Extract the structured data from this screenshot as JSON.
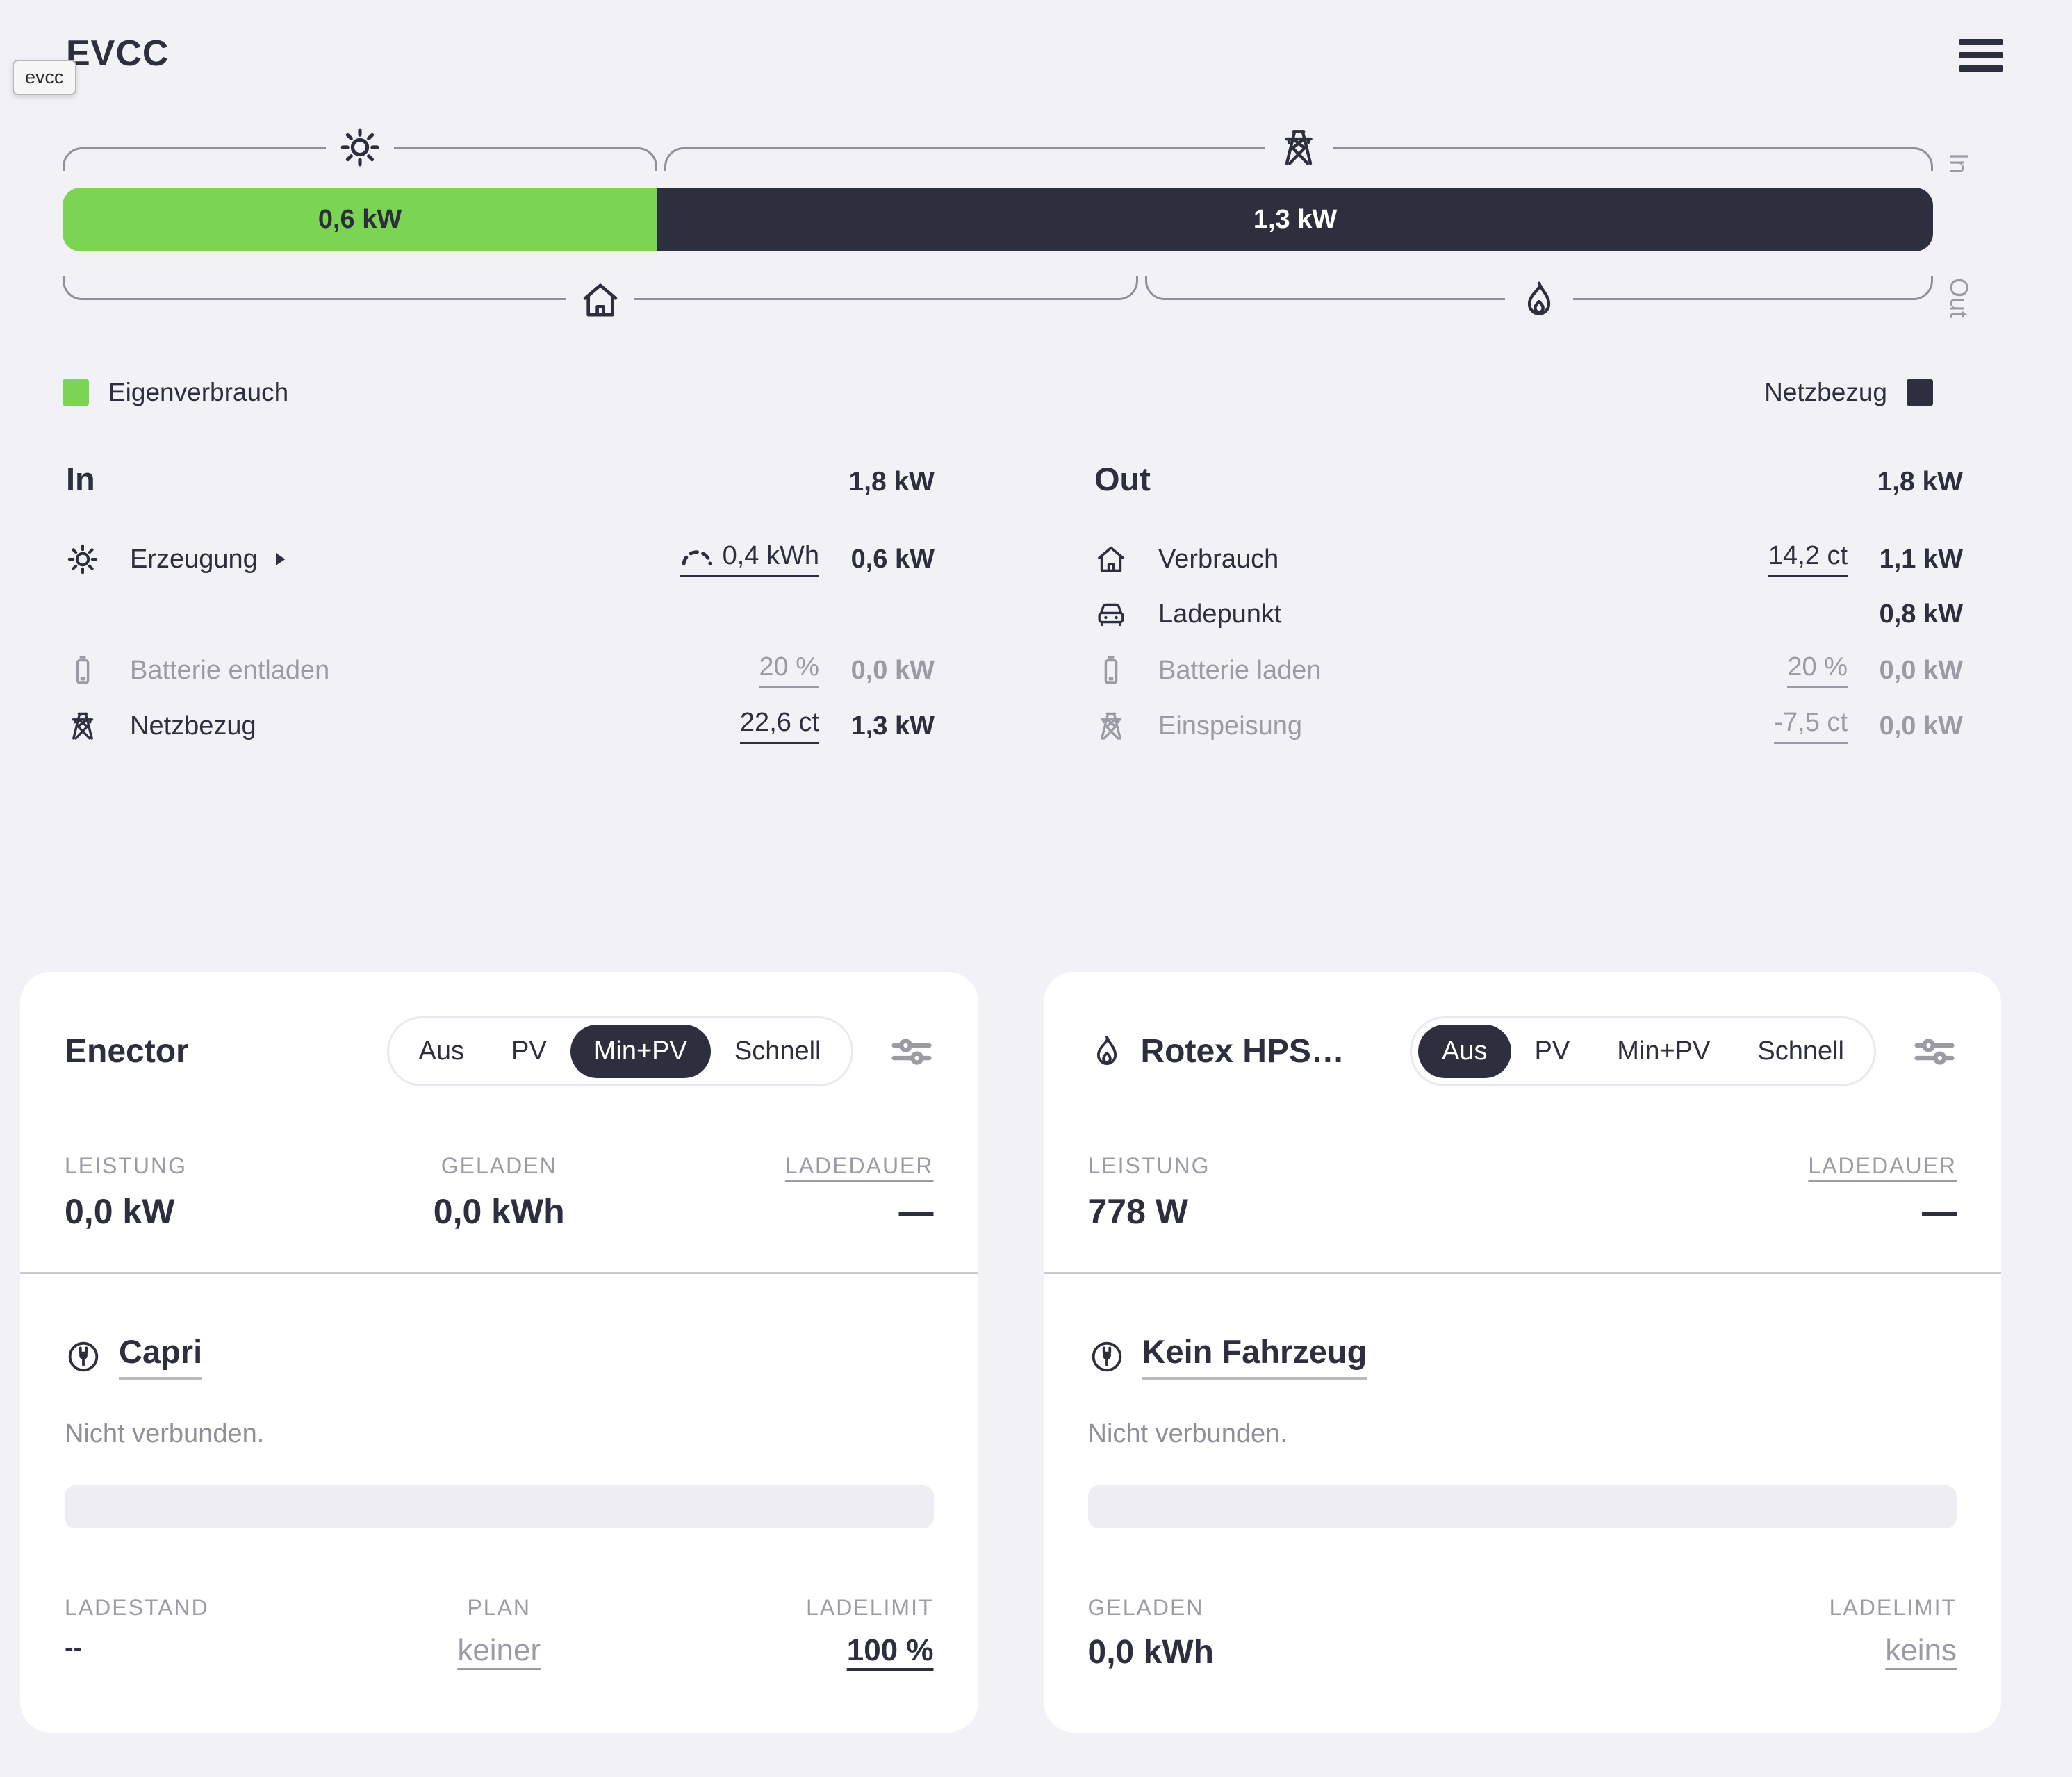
{
  "header": {
    "title": "EVCC",
    "tooltip": "evcc"
  },
  "flow": {
    "in_axis": "In",
    "out_axis": "Out",
    "pv_segment": {
      "label": "0,6 kW",
      "share_pct": 31.8
    },
    "grid_segment": {
      "label": "1,3 kW"
    },
    "bottom_split_pct": 57.5
  },
  "legend": {
    "self": "Eigenverbrauch",
    "grid": "Netzbezug"
  },
  "energy_in": {
    "title": "In",
    "total": "1,8 kW",
    "rows": [
      {
        "label": "Erzeugung",
        "mid": "0,4 kWh",
        "value": "0,6 kW"
      },
      {
        "label": "Batterie entladen",
        "mid": "20 %",
        "value": "0,0 kW"
      },
      {
        "label": "Netzbezug",
        "mid": "22,6 ct",
        "value": "1,3 kW"
      }
    ]
  },
  "energy_out": {
    "title": "Out",
    "total": "1,8 kW",
    "rows": [
      {
        "label": "Verbrauch",
        "mid": "14,2 ct",
        "value": "1,1 kW"
      },
      {
        "label": "Ladepunkt",
        "mid": "",
        "value": "0,8 kW"
      },
      {
        "label": "Batterie laden",
        "mid": "20 %",
        "value": "0,0 kW"
      },
      {
        "label": "Einspeisung",
        "mid": "-7,5 ct",
        "value": "0,0 kW"
      }
    ]
  },
  "loadpoint1": {
    "title": "Enector",
    "modes": [
      "Aus",
      "PV",
      "Min+PV",
      "Schnell"
    ],
    "active_mode": "Min+PV",
    "stat1_label": "LEISTUNG",
    "stat1_value": "0,0 kW",
    "stat2_label": "GELADEN",
    "stat2_value": "0,0 kWh",
    "stat3_label": "LADEDAUER",
    "stat3_value": "—",
    "vehicle_name": "Capri",
    "status": "Nicht verbunden.",
    "bottom1_label": "LADESTAND",
    "bottom1_value": "--",
    "bottom2_label": "PLAN",
    "bottom2_value": "keiner",
    "bottom3_label": "LADELIMIT",
    "bottom3_value": "100 %"
  },
  "loadpoint2": {
    "title": "Rotex HPS…",
    "modes": [
      "Aus",
      "PV",
      "Min+PV",
      "Schnell"
    ],
    "active_mode": "Aus",
    "stat1_label": "LEISTUNG",
    "stat1_value": "778 W",
    "stat2_label": "LADEDAUER",
    "stat2_value": "—",
    "vehicle_name": "Kein Fahrzeug",
    "status": "Nicht verbunden.",
    "bottom1_label": "GELADEN",
    "bottom1_value": "0,0 kWh",
    "bottom2_label": "LADELIMIT",
    "bottom2_value": "keins"
  }
}
